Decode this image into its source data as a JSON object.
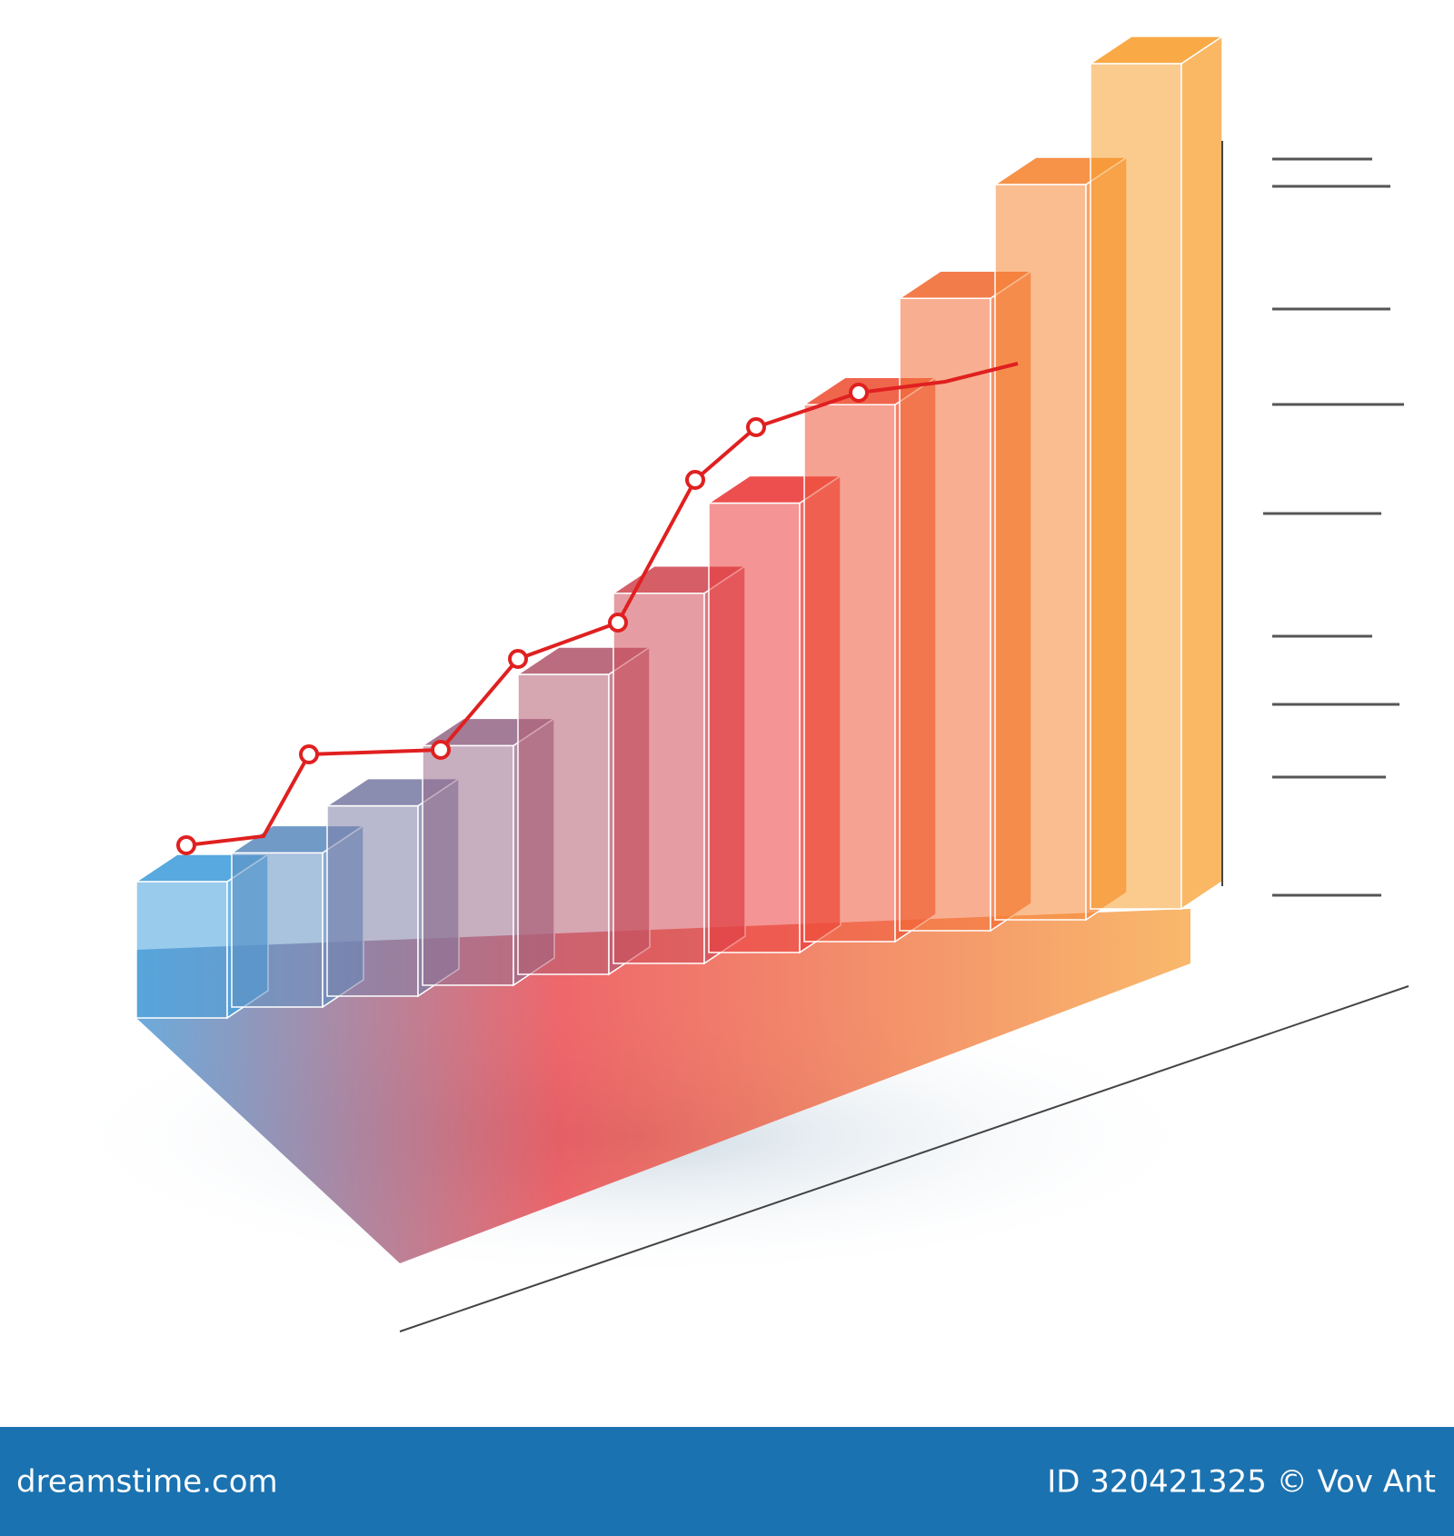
{
  "footer": {
    "site": "dreamstime.com",
    "credit": "ID 320421325 © Vov Ant"
  }
}
